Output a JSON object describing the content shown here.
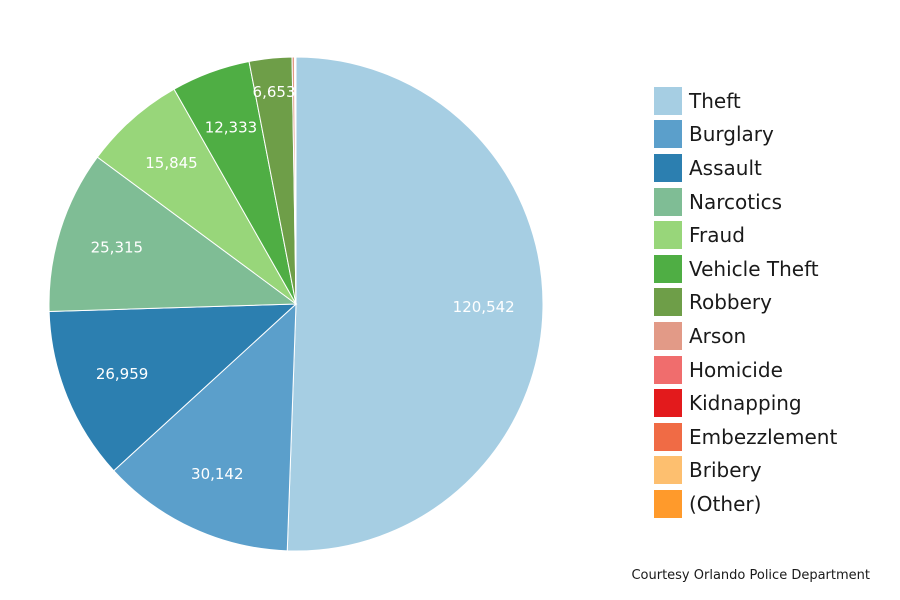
{
  "chart_data": {
    "type": "pie",
    "categories": [
      "Theft",
      "Burglary",
      "Assault",
      "Narcotics",
      "Fraud",
      "Vehicle Theft",
      "Robbery",
      "Arson",
      "Homicide",
      "Kidnapping",
      "Embezzlement",
      "Bribery",
      "(Other)"
    ],
    "values": [
      120542,
      30142,
      26959,
      25315,
      15845,
      12333,
      6653,
      380,
      120,
      60,
      30,
      10,
      5
    ],
    "data_labels": [
      "120,542",
      "30,142",
      "26,959",
      "25,315",
      "15,845",
      "12,333",
      "6,653",
      "",
      "",
      "",
      "",
      "",
      ""
    ],
    "colors": [
      "#a6cee3",
      "#5b9fcb",
      "#2c7fb0",
      "#7fbd95",
      "#98d67a",
      "#4fae44",
      "#6e9e48",
      "#e29a87",
      "#f06d6d",
      "#e31a1c",
      "#f06b45",
      "#fdbf6f",
      "#ff9a2b"
    ],
    "legend_position": "right"
  },
  "credit": "Courtesy Orlando Police Department"
}
